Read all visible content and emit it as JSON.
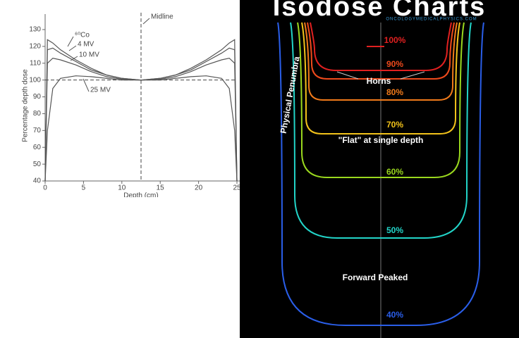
{
  "chart_data": {
    "type": "line",
    "x": [
      0,
      0.3,
      1,
      2,
      4,
      6,
      8,
      10,
      12.5,
      15,
      17,
      19,
      21,
      23,
      24,
      24.7,
      25
    ],
    "series": [
      {
        "name": "⁶⁰Co",
        "color": "#555555",
        "values": [
          40,
          124,
          122,
          118,
          112,
          107,
          103,
          101,
          100,
          101,
          103,
          107,
          112,
          118,
          122,
          124,
          40
        ]
      },
      {
        "name": "4 MV",
        "color": "#555555",
        "values": [
          40,
          118,
          119,
          116,
          111,
          106,
          103,
          101,
          100,
          101,
          103,
          106,
          111,
          116,
          119,
          118,
          40
        ]
      },
      {
        "name": "10 MV",
        "color": "#555555",
        "values": [
          40,
          110,
          113,
          112,
          109,
          105,
          102,
          100.5,
          100,
          100.5,
          102,
          105,
          109,
          112,
          113,
          110,
          40
        ]
      },
      {
        "name": "25 MV",
        "color": "#555555",
        "values": [
          40,
          70,
          95,
          101,
          102.5,
          102,
          101,
          100,
          100,
          100,
          101,
          102,
          102.5,
          101,
          95,
          70,
          40
        ]
      }
    ],
    "xlim": [
      0,
      25
    ],
    "xticks": [
      0,
      5,
      10,
      15,
      20,
      25
    ],
    "ylim": [
      40,
      130
    ],
    "yticks": [
      40,
      50,
      60,
      70,
      80,
      90,
      100,
      110,
      120,
      130
    ],
    "xlabel": "Depth (cm)",
    "ylabel": "Percentage depth dose",
    "reference_line": 100,
    "midline": 12.5,
    "midline_label": "Midline"
  },
  "isodose": {
    "title": "Isodose Charts",
    "subtitle": "ONCOLOGYMEDICALPHYSICS.COM",
    "levels": [
      {
        "label": "100%",
        "color": "#e02020"
      },
      {
        "label": "90%",
        "color": "#ee4a1c"
      },
      {
        "label": "80%",
        "color": "#f07a1a"
      },
      {
        "label": "70%",
        "color": "#f2c21a"
      },
      {
        "label": "60%",
        "color": "#9ad81e"
      },
      {
        "label": "50%",
        "color": "#22d4c8"
      },
      {
        "label": "40%",
        "color": "#2a5ee8"
      }
    ],
    "annotations": [
      "Horns",
      "Physical Penumbra",
      "\"Flat\" at single depth",
      "Forward Peaked"
    ]
  }
}
